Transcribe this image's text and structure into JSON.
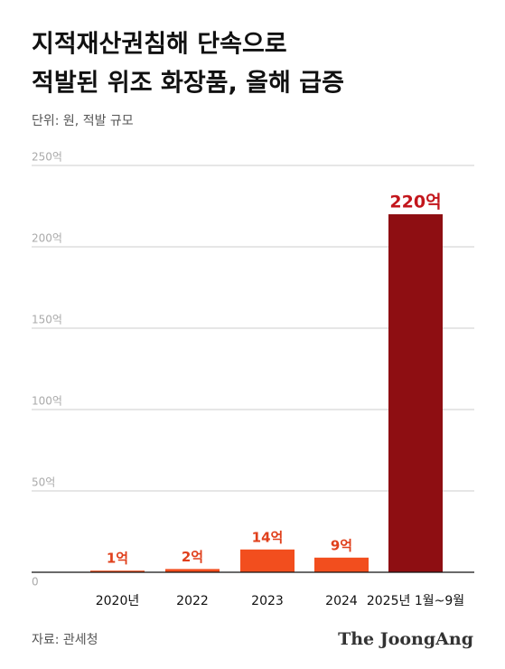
{
  "chart_data": {
    "type": "bar",
    "title_lines": [
      "지적재산권침해 단속으로",
      "적발된 위조 화장품, 올해 급증"
    ],
    "subtitle": "단위: 원, 적발 규모",
    "categories": [
      "2020년",
      "2022",
      "2023",
      "2024",
      "2025년 1월~9월"
    ],
    "values": [
      1,
      2,
      14,
      9,
      220
    ],
    "value_labels": [
      "1억",
      "2억",
      "14억",
      "9억",
      "220억"
    ],
    "colors": [
      "#f24e1e",
      "#f24e1e",
      "#f24e1e",
      "#f24e1e",
      "#8e0e12"
    ],
    "label_colors": [
      "#e0401c",
      "#e0401c",
      "#e0401c",
      "#e0401c",
      "#c3161c"
    ],
    "ylim": [
      0,
      250
    ],
    "yticks": [
      0,
      {
        "value": 50,
        "label": "50억"
      },
      {
        "value": 100,
        "label": "100억"
      },
      {
        "value": 150,
        "label": "150억"
      },
      {
        "value": 200,
        "label": "200억"
      },
      {
        "value": 250,
        "label": "250억"
      }
    ],
    "grid": true,
    "source": "자료: 관세청",
    "logo": "The JoongAng"
  }
}
